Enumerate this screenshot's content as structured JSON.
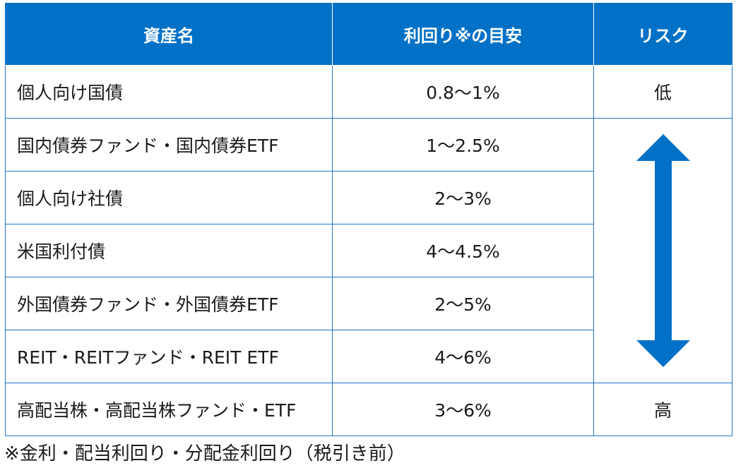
{
  "header": {
    "col_asset": "資産名",
    "col_yield": "利回り※の目安",
    "col_risk": "リスク"
  },
  "rows": [
    {
      "name": "個人向け国債",
      "yield": "0.8〜1%"
    },
    {
      "name": "国内債券ファンド・国内債券ETF",
      "yield": "1〜2.5%"
    },
    {
      "name": "個人向け社債",
      "yield": "2〜3%"
    },
    {
      "name": "米国利付債",
      "yield": "4〜4.5%"
    },
    {
      "name": "外国債券ファンド・外国債券ETF",
      "yield": "2〜5%"
    },
    {
      "name": "REIT・REITファンド・REIT ETF",
      "yield": "4〜6%"
    },
    {
      "name": "高配当株・高配当株ファンド・ETF",
      "yield": "3〜6%"
    }
  ],
  "risk": {
    "low": "低",
    "high": "高"
  },
  "colors": {
    "header_bg": "#0071c7",
    "border": "#1f73c7",
    "arrow": "#0071c7"
  },
  "icons": {
    "risk_arrow": "double-headed-vertical-arrow-icon"
  },
  "footnote": "※金利・配当利回り・分配金利回り（税引き前）"
}
